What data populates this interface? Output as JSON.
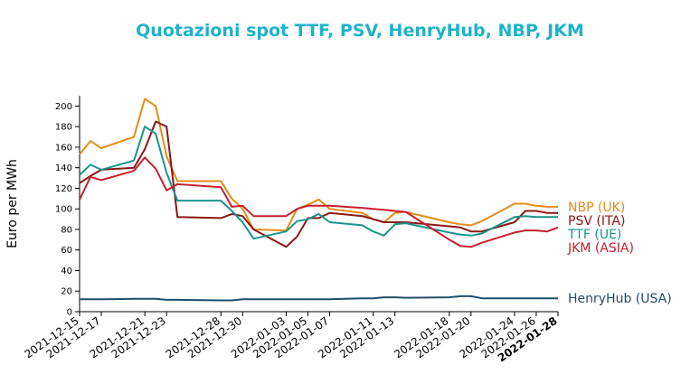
{
  "chart_data": {
    "type": "line",
    "title": "Quotazioni spot TTF, PSV, HenryHub, NBP, JKM",
    "title_color": "#1fb2c9",
    "xlabel": "",
    "ylabel": "Euro per MWh",
    "ylim": [
      0,
      210
    ],
    "yticks": [
      0,
      20,
      40,
      60,
      80,
      100,
      120,
      140,
      160,
      180,
      200
    ],
    "x": [
      "2021-12-15",
      "2021-12-16",
      "2021-12-17",
      "2021-12-20",
      "2021-12-21",
      "2021-12-22",
      "2021-12-23",
      "2021-12-24",
      "2021-12-28",
      "2021-12-29",
      "2021-12-30",
      "2021-12-31",
      "2022-01-03",
      "2022-01-04",
      "2022-01-05",
      "2022-01-06",
      "2022-01-07",
      "2022-01-10",
      "2022-01-11",
      "2022-01-12",
      "2022-01-13",
      "2022-01-14",
      "2022-01-18",
      "2022-01-19",
      "2022-01-20",
      "2022-01-21",
      "2022-01-24",
      "2022-01-25",
      "2022-01-26",
      "2022-01-27",
      "2022-01-28"
    ],
    "xticks": [
      "2021-12-15",
      "2021-12-17",
      "2021-12-21",
      "2021-12-23",
      "2021-12-28",
      "2021-12-30",
      "2022-01-03",
      "2022-01-05",
      "2022-01-07",
      "2022-01-11",
      "2022-01-13",
      "2022-01-18",
      "2022-01-20",
      "2022-01-24",
      "2022-01-26",
      "2022-01-28"
    ],
    "grid": false,
    "legend_placement": "right, at line ends",
    "series": [
      {
        "name": "NBP (UK)",
        "color": "#e38d1a",
        "values": [
          153,
          166,
          159,
          170,
          207,
          200,
          151,
          127,
          127,
          110,
          100,
          80,
          79,
          100,
          104,
          109,
          100,
          96,
          90,
          87,
          96,
          97,
          87,
          85,
          84,
          88,
          105,
          105,
          103,
          102,
          102
        ]
      },
      {
        "name": "PSV (ITA)",
        "color": "#8b1717",
        "values": [
          125,
          132,
          138,
          140,
          158,
          185,
          180,
          92,
          91,
          95,
          93,
          80,
          63,
          73,
          91,
          91,
          96,
          93,
          90,
          87,
          87,
          87,
          83,
          82,
          78,
          78,
          87,
          98,
          98,
          96,
          96
        ]
      },
      {
        "name": "TTF (UE)",
        "color": "#1b9488",
        "values": [
          133,
          143,
          138,
          147,
          180,
          173,
          135,
          108,
          108,
          98,
          87,
          71,
          78,
          88,
          90,
          95,
          87,
          84,
          78,
          74,
          85,
          86,
          77,
          75,
          74,
          76,
          92,
          93,
          92,
          92,
          92
        ]
      },
      {
        "name": "JKM (ASIA)",
        "color": "#c7202f",
        "values": [
          109,
          131,
          128,
          137,
          150,
          139,
          118,
          124,
          121,
          102,
          103,
          93,
          93,
          100,
          103,
          103,
          103,
          101,
          100,
          99,
          98,
          97,
          70,
          64,
          63,
          67,
          77,
          79,
          79,
          78,
          82
        ]
      },
      {
        "name": "HenryHub (USA)",
        "color": "#1f4e6b",
        "values": [
          12,
          12,
          12,
          12.5,
          12.5,
          12.5,
          11.5,
          11.5,
          11,
          11,
          12,
          12,
          12,
          12,
          12,
          12,
          12,
          13,
          13,
          14,
          14,
          13.5,
          14,
          15,
          15,
          13,
          13,
          13,
          13,
          13,
          13
        ]
      }
    ]
  }
}
